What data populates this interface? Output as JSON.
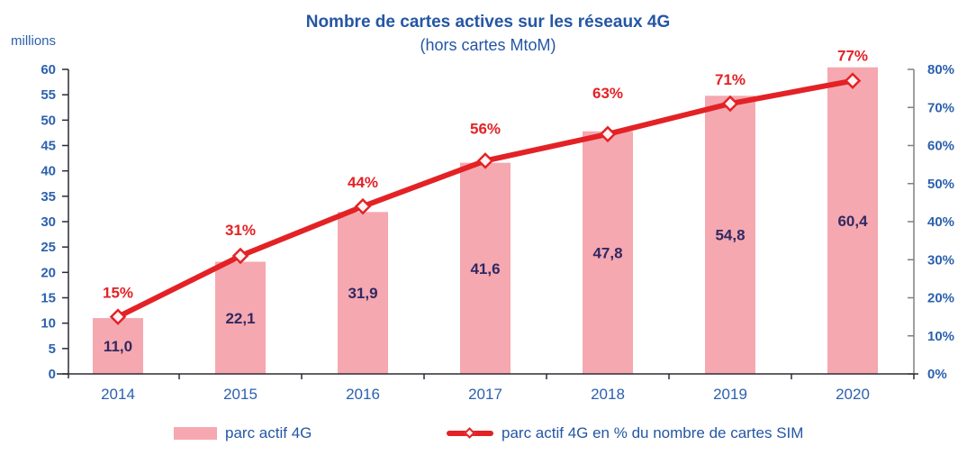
{
  "title": "Nombre de cartes actives sur les réseaux 4G",
  "subtitle": "(hors cartes MtoM)",
  "left_axis_unit": "millions",
  "colors": {
    "bar_fill": "#f5a8b0",
    "line_red": "#e32226",
    "pct_label_red": "#e32226",
    "blue_text": "#2c61ae",
    "title_blue": "#2456a4",
    "bar_value_text": "#312862",
    "axis_dark": "#2b2b33",
    "axis_gray": "#808080",
    "marker_fill": "#fdf2f2"
  },
  "legend": {
    "bar": {
      "label": "parc actif 4G"
    },
    "line": {
      "label": "parc actif 4G en % du nombre de cartes SIM"
    }
  },
  "chart_data": {
    "type": "bar+line",
    "title": "Nombre de cartes actives sur les réseaux 4G",
    "subtitle": "(hors cartes MtoM)",
    "categories": [
      "2014",
      "2015",
      "2016",
      "2017",
      "2018",
      "2019",
      "2020"
    ],
    "series": [
      {
        "name": "parc actif 4G",
        "type": "bar",
        "axis": "left",
        "values": [
          11.0,
          22.1,
          31.9,
          41.6,
          47.8,
          54.8,
          60.4
        ],
        "labels": [
          "11,0",
          "22,1",
          "31,9",
          "41,6",
          "47,8",
          "54,8",
          "60,4"
        ]
      },
      {
        "name": "parc actif 4G en % du nombre de cartes SIM",
        "type": "line",
        "axis": "right",
        "values": [
          15,
          31,
          44,
          56,
          63,
          71,
          77
        ],
        "labels": [
          "15%",
          "31%",
          "44%",
          "56%",
          "63%",
          "71%",
          "77%"
        ]
      }
    ],
    "left_axis": {
      "label": "millions",
      "min": 0,
      "max": 60,
      "step": 5,
      "ticks": [
        "0",
        "5",
        "10",
        "15",
        "20",
        "25",
        "30",
        "35",
        "40",
        "45",
        "50",
        "55",
        "60"
      ]
    },
    "right_axis": {
      "min": 0,
      "max": 80,
      "step": 10,
      "ticks": [
        "0%",
        "10%",
        "20%",
        "30%",
        "40%",
        "50%",
        "60%",
        "70%",
        "80%"
      ]
    },
    "grid": false,
    "legend_position": "bottom",
    "pct_label_dy": [
      -27,
      -29,
      -27,
      -36,
      -46,
      -27,
      -28
    ]
  }
}
